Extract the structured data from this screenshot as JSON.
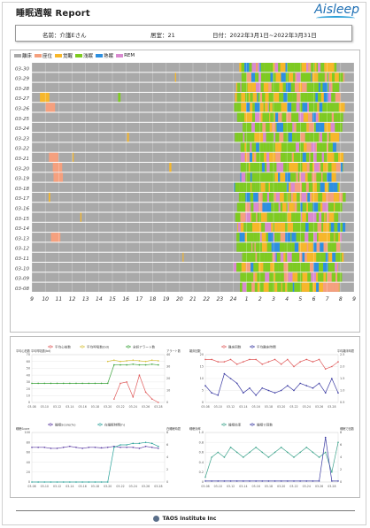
{
  "header": {
    "title": "睡眠週報 Report",
    "logo": "Aisleep",
    "name_label": "名前：介護Eさん",
    "room_label": "居室：21",
    "date_label": "日付：2022年3月1日~2022年3月31日"
  },
  "legend": [
    {
      "label": "離床",
      "color": "#a9a9a9"
    },
    {
      "label": "座位",
      "color": "#f5a07e"
    },
    {
      "label": "覚醒",
      "color": "#f7b72a"
    },
    {
      "label": "浅眠",
      "color": "#7ecb21"
    },
    {
      "label": "熟眠",
      "color": "#2d8fe0"
    },
    {
      "label": "REM",
      "color": "#d98ad0"
    }
  ],
  "hypnogram": {
    "dates": [
      "03-30",
      "03-29",
      "03-28",
      "03-27",
      "03-26",
      "03-25",
      "03-24",
      "03-23",
      "03-22",
      "03-21",
      "03-20",
      "03-19",
      "03-18",
      "03-17",
      "03-16",
      "03-15",
      "03-14",
      "03-13",
      "03-12",
      "03-11",
      "03-10",
      "03-09",
      "03-08"
    ],
    "hour_ticks": [
      "9",
      "10",
      "11",
      "12",
      "13",
      "14",
      "15",
      "16",
      "17",
      "18",
      "19",
      "20",
      "21",
      "22",
      "23",
      "24",
      "1",
      "2",
      "3",
      "4",
      "5",
      "6",
      "7",
      "8",
      "9"
    ]
  },
  "mini_charts": [
    {
      "legend": [
        "平均心拍数",
        "平均呼吸数(bd)",
        "全訳アラート数"
      ],
      "left_axis": "平均心拍数\n平均呼吸数(bd)",
      "right_axis": "アラート数",
      "left_ticks": [
        "0",
        "10",
        "20",
        "30",
        "40",
        "50",
        "60",
        "70"
      ],
      "right_ticks": [
        "0",
        "10",
        "20",
        "30",
        "40"
      ],
      "series": [
        {
          "color": "#e05b5b",
          "values": [
            null,
            null,
            null,
            null,
            null,
            null,
            null,
            null,
            null,
            null,
            null,
            null,
            null,
            5,
            28,
            30,
            8,
            40,
            15,
            5,
            0,
            null
          ]
        },
        {
          "color": "#d7c13a",
          "values": [
            null,
            null,
            null,
            null,
            null,
            null,
            null,
            null,
            null,
            null,
            null,
            null,
            60,
            62,
            60,
            61,
            62,
            61,
            60,
            62,
            61,
            null
          ]
        },
        {
          "color": "#3aa23a",
          "values": [
            28,
            28,
            28,
            28,
            28,
            28,
            28,
            28,
            28,
            28,
            28,
            28,
            28,
            55,
            55,
            55,
            56,
            55,
            55,
            56,
            55,
            null
          ]
        }
      ]
    },
    {
      "legend": [
        "離床回数",
        "平均離床時間"
      ],
      "left_axis": "離床回数",
      "right_axis": "平均離床時間",
      "left_ticks": [
        "0",
        "5",
        "10",
        "15",
        "20"
      ],
      "right_ticks": [
        "0.5",
        "1.0",
        "1.5",
        "2.0",
        "2.5"
      ],
      "series": [
        {
          "color": "#e05b5b",
          "values": [
            18,
            18,
            17,
            17,
            18,
            16,
            17,
            18,
            18,
            16,
            17,
            18,
            16,
            18,
            15,
            17,
            18,
            17,
            18,
            14,
            15,
            17
          ]
        },
        {
          "color": "#3a3aa2",
          "values": [
            7,
            4,
            3,
            12,
            10,
            8,
            4,
            6,
            3,
            6,
            5,
            4,
            5,
            7,
            5,
            8,
            7,
            6,
            8,
            4,
            10,
            4
          ]
        }
      ]
    },
    {
      "legend": [
        "睡眠Score(%)",
        "在睡眠時間(h)"
      ],
      "left_axis": "睡眠Score",
      "right_axis": "在睡眠時間",
      "left_ticks": [
        "0",
        "20",
        "40",
        "60",
        "80",
        "100"
      ],
      "right_ticks": [
        "0",
        "2",
        "4",
        "6",
        "8"
      ],
      "series": [
        {
          "color": "#5a3aa2",
          "values": [
            70,
            70,
            70,
            68,
            68,
            70,
            72,
            70,
            68,
            70,
            70,
            69,
            70,
            72,
            70,
            70,
            70,
            68,
            72,
            70,
            68,
            null
          ]
        },
        {
          "color": "#2aa29a",
          "values": [
            0,
            0,
            0,
            0,
            0,
            0,
            0,
            0,
            0,
            0,
            0,
            0,
            0,
            70,
            75,
            75,
            78,
            78,
            80,
            78,
            72,
            null
          ]
        }
      ]
    },
    {
      "legend": [
        "睡眠効率",
        "睡眠で回数"
      ],
      "left_axis": "睡眠効率",
      "right_axis": "睡眠で回数",
      "left_ticks": [
        "0",
        "0.2",
        "0.4",
        "0.6",
        "0.8",
        "1.0"
      ],
      "right_ticks": [
        "0",
        "2",
        "4",
        "6",
        "8"
      ],
      "series": [
        {
          "color": "#3aa28a",
          "values": [
            0.1,
            0.5,
            0.6,
            0.5,
            0.7,
            0.6,
            0.5,
            0.6,
            0.7,
            0.6,
            0.5,
            0.6,
            0.7,
            0.6,
            0.5,
            0.6,
            0.7,
            0.6,
            0.5,
            0.6,
            0.2,
            0.8
          ]
        },
        {
          "color": "#3a3aa2",
          "values": [
            0.02,
            0.02,
            0.02,
            0.02,
            0.02,
            0.02,
            0.02,
            0.02,
            0.02,
            0.02,
            0.02,
            0.02,
            0.02,
            0.02,
            0.02,
            0.02,
            0.02,
            0.02,
            0.02,
            0.9,
            0.02,
            0.02
          ]
        }
      ]
    }
  ],
  "mini_dates": [
    "03-08",
    "03-09",
    "03-10",
    "03-11",
    "03-12",
    "03-13",
    "03-14",
    "03-15",
    "03-16",
    "03-17",
    "03-18",
    "03-19",
    "03-20",
    "03-21",
    "03-22",
    "03-23",
    "03-24",
    "03-25",
    "03-26",
    "03-27",
    "03-28",
    "03-29"
  ],
  "footer": {
    "company": "TAOS Institute Inc"
  }
}
